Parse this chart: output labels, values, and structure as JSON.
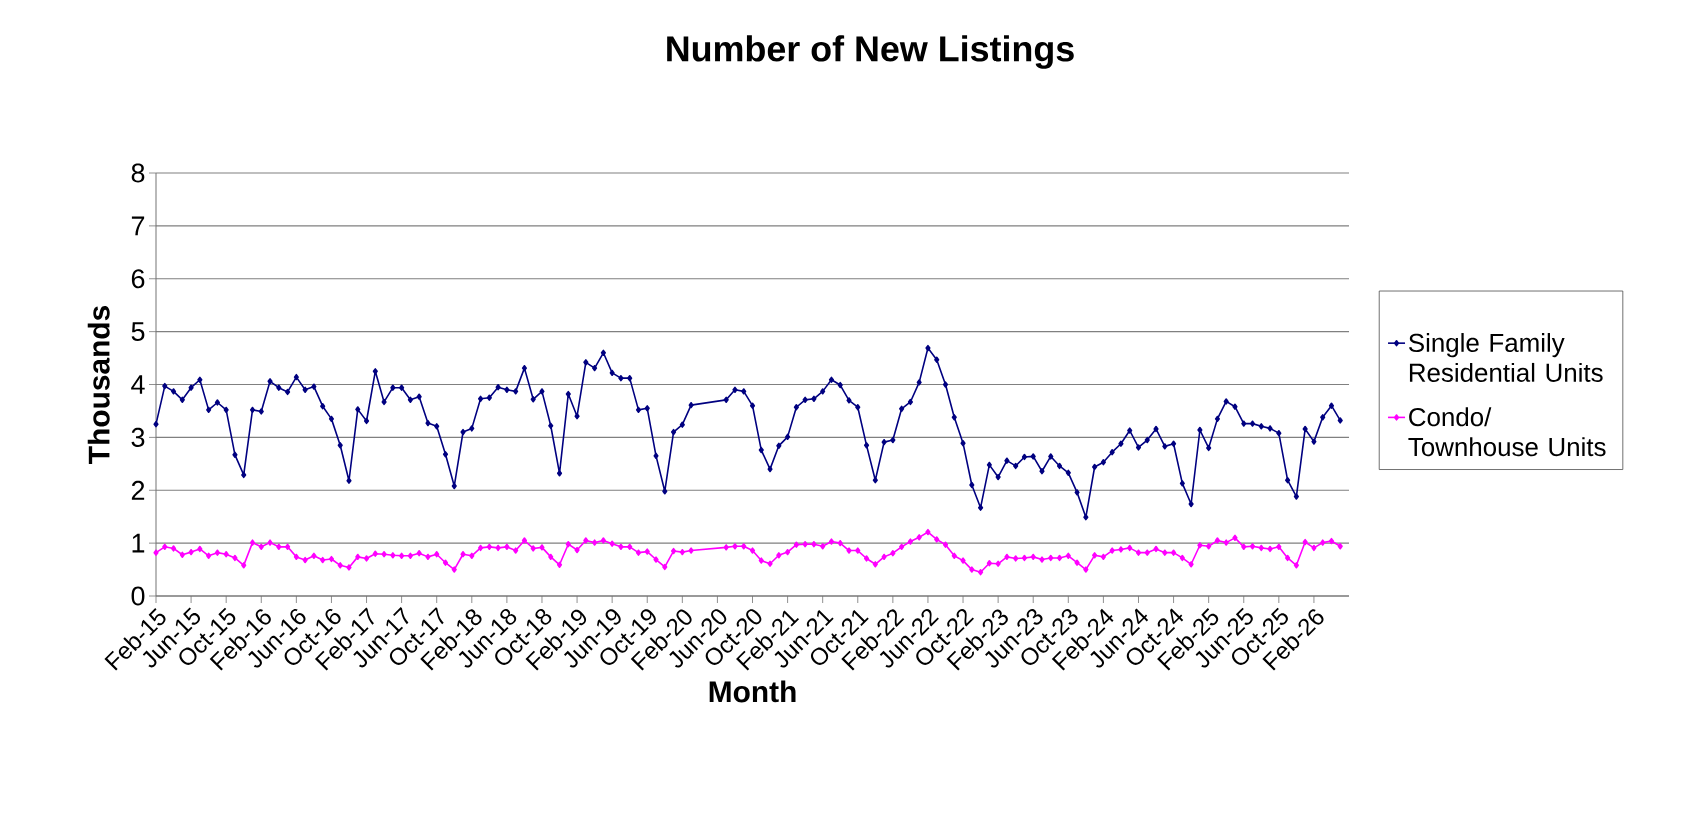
{
  "chart_data": {
    "type": "line",
    "title": "Number of New Listings",
    "xlabel": "Month",
    "ylabel": "Thousands",
    "x": [
      "2015-02",
      "2015-03",
      "2015-04",
      "2015-05",
      "2015-06",
      "2015-07",
      "2015-08",
      "2015-09",
      "2015-10",
      "2015-11",
      "2015-12",
      "2016-01",
      "2016-02",
      "2016-03",
      "2016-04",
      "2016-05",
      "2016-06",
      "2016-07",
      "2016-08",
      "2016-09",
      "2016-10",
      "2016-11",
      "2016-12",
      "2017-01",
      "2017-02",
      "2017-03",
      "2017-04",
      "2017-05",
      "2017-06",
      "2017-07",
      "2017-08",
      "2017-09",
      "2017-10",
      "2017-11",
      "2017-12",
      "2018-01",
      "2018-02",
      "2018-03",
      "2018-04",
      "2018-05",
      "2018-06",
      "2018-07",
      "2018-08",
      "2018-09",
      "2018-10",
      "2018-11",
      "2018-12",
      "2019-01",
      "2019-02",
      "2019-03",
      "2019-04",
      "2019-05",
      "2019-06",
      "2019-07",
      "2019-08",
      "2019-09",
      "2019-10",
      "2019-11",
      "2019-12",
      "2020-01",
      "2020-02",
      "2020-03",
      "2020-07",
      "2020-08",
      "2020-09",
      "2020-10",
      "2020-11",
      "2020-12",
      "2021-01",
      "2021-02",
      "2021-03",
      "2021-04",
      "2021-05",
      "2021-06",
      "2021-07",
      "2021-08",
      "2021-09",
      "2021-10",
      "2021-11",
      "2021-12",
      "2022-01",
      "2022-02",
      "2022-03",
      "2022-04",
      "2022-05",
      "2022-06",
      "2022-07",
      "2022-08",
      "2022-09",
      "2022-10",
      "2022-11",
      "2022-12",
      "2023-01",
      "2023-02",
      "2023-03",
      "2023-04",
      "2023-05",
      "2023-06",
      "2023-07",
      "2023-08",
      "2023-09",
      "2023-10",
      "2023-11",
      "2023-12",
      "2024-01",
      "2024-02",
      "2024-03",
      "2024-04",
      "2024-05",
      "2024-06",
      "2024-07",
      "2024-08",
      "2024-09",
      "2024-10",
      "2024-11",
      "2024-12",
      "2025-01",
      "2025-02",
      "2025-03",
      "2025-04",
      "2025-05",
      "2025-06",
      "2025-07",
      "2025-08",
      "2025-09",
      "2025-10",
      "2025-11",
      "2025-12",
      "2026-01",
      "2026-02",
      "2026-03",
      "2026-04",
      "2026-05"
    ],
    "series": [
      {
        "name": "Single Family Residential Units",
        "color": "#000080",
        "values": [
          3.25,
          3.97,
          3.87,
          3.71,
          3.94,
          4.09,
          3.52,
          3.66,
          3.52,
          2.67,
          2.29,
          3.52,
          3.49,
          4.06,
          3.94,
          3.86,
          4.14,
          3.9,
          3.96,
          3.59,
          3.35,
          2.85,
          2.18,
          3.53,
          3.31,
          4.25,
          3.67,
          3.94,
          3.94,
          3.71,
          3.77,
          3.27,
          3.21,
          2.68,
          2.08,
          3.1,
          3.17,
          3.73,
          3.75,
          3.95,
          3.9,
          3.87,
          4.31,
          3.72,
          3.87,
          3.22,
          2.32,
          3.82,
          3.4,
          4.42,
          4.31,
          4.6,
          4.22,
          4.12,
          4.12,
          3.52,
          3.55,
          2.65,
          1.98,
          3.1,
          3.24,
          3.61,
          3.71,
          3.9,
          3.87,
          3.6,
          2.76,
          2.4,
          2.84,
          3.01,
          3.57,
          3.71,
          3.73,
          3.87,
          4.09,
          3.99,
          3.7,
          3.57,
          2.85,
          2.19,
          2.91,
          2.95,
          3.54,
          3.67,
          4.04,
          4.69,
          4.47,
          4.0,
          3.38,
          2.89,
          2.1,
          1.67,
          2.48,
          2.25,
          2.56,
          2.46,
          2.63,
          2.64,
          2.36,
          2.64,
          2.46,
          2.33,
          1.96,
          1.49,
          2.44,
          2.53,
          2.72,
          2.88,
          3.13,
          2.81,
          2.95,
          3.16,
          2.83,
          2.88,
          2.13,
          1.74,
          3.14,
          2.8,
          3.35,
          3.68,
          3.58,
          3.26,
          3.26,
          3.21,
          3.17,
          3.08,
          2.19,
          1.88,
          3.16,
          2.92,
          3.38,
          3.6,
          3.32
        ]
      },
      {
        "name": "Condo/ Townhouse Units",
        "color": "#ff00ff",
        "values": [
          0.82,
          0.93,
          0.9,
          0.78,
          0.83,
          0.89,
          0.76,
          0.82,
          0.79,
          0.72,
          0.58,
          1.01,
          0.93,
          1.01,
          0.93,
          0.93,
          0.74,
          0.68,
          0.76,
          0.68,
          0.7,
          0.58,
          0.54,
          0.74,
          0.71,
          0.8,
          0.79,
          0.77,
          0.76,
          0.76,
          0.81,
          0.74,
          0.79,
          0.63,
          0.5,
          0.79,
          0.76,
          0.91,
          0.93,
          0.91,
          0.93,
          0.86,
          1.05,
          0.9,
          0.92,
          0.74,
          0.59,
          0.98,
          0.87,
          1.05,
          1.01,
          1.05,
          0.99,
          0.93,
          0.93,
          0.82,
          0.84,
          0.69,
          0.55,
          0.85,
          0.83,
          0.86,
          0.92,
          0.94,
          0.94,
          0.86,
          0.67,
          0.61,
          0.77,
          0.83,
          0.97,
          0.98,
          0.98,
          0.94,
          1.03,
          1.0,
          0.86,
          0.86,
          0.71,
          0.6,
          0.74,
          0.81,
          0.93,
          1.03,
          1.11,
          1.21,
          1.07,
          0.97,
          0.76,
          0.67,
          0.5,
          0.45,
          0.62,
          0.61,
          0.74,
          0.71,
          0.72,
          0.74,
          0.69,
          0.72,
          0.72,
          0.76,
          0.63,
          0.5,
          0.77,
          0.74,
          0.86,
          0.88,
          0.91,
          0.82,
          0.82,
          0.89,
          0.82,
          0.82,
          0.72,
          0.6,
          0.96,
          0.94,
          1.05,
          1.01,
          1.1,
          0.93,
          0.94,
          0.91,
          0.89,
          0.93,
          0.72,
          0.58,
          1.02,
          0.91,
          1.01,
          1.04,
          0.94
        ]
      }
    ],
    "xlim": [
      "2015-02",
      "2026-06"
    ],
    "xticks": [
      {
        "value": "2015-02",
        "label": "Feb-15"
      },
      {
        "value": "2015-06",
        "label": "Jun-15"
      },
      {
        "value": "2015-10",
        "label": "Oct-15"
      },
      {
        "value": "2016-02",
        "label": "Feb-16"
      },
      {
        "value": "2016-06",
        "label": "Jun-16"
      },
      {
        "value": "2016-10",
        "label": "Oct-16"
      },
      {
        "value": "2017-02",
        "label": "Feb-17"
      },
      {
        "value": "2017-06",
        "label": "Jun-17"
      },
      {
        "value": "2017-10",
        "label": "Oct-17"
      },
      {
        "value": "2018-02",
        "label": "Feb-18"
      },
      {
        "value": "2018-06",
        "label": "Jun-18"
      },
      {
        "value": "2018-10",
        "label": "Oct-18"
      },
      {
        "value": "2019-02",
        "label": "Feb-19"
      },
      {
        "value": "2019-06",
        "label": "Jun-19"
      },
      {
        "value": "2019-10",
        "label": "Oct-19"
      },
      {
        "value": "2020-02",
        "label": "Feb-20"
      },
      {
        "value": "2020-06",
        "label": "Jun-20"
      },
      {
        "value": "2020-10",
        "label": "Oct-20"
      },
      {
        "value": "2021-02",
        "label": "Feb-21"
      },
      {
        "value": "2021-06",
        "label": "Jun-21"
      },
      {
        "value": "2021-10",
        "label": "Oct-21"
      },
      {
        "value": "2022-02",
        "label": "Feb-22"
      },
      {
        "value": "2022-06",
        "label": "Jun-22"
      },
      {
        "value": "2022-10",
        "label": "Oct-22"
      },
      {
        "value": "2023-02",
        "label": "Feb-23"
      },
      {
        "value": "2023-06",
        "label": "Jun-23"
      },
      {
        "value": "2023-10",
        "label": "Oct-23"
      },
      {
        "value": "2024-02",
        "label": "Feb-24"
      },
      {
        "value": "2024-06",
        "label": "Jun-24"
      },
      {
        "value": "2024-10",
        "label": "Oct-24"
      },
      {
        "value": "2025-02",
        "label": "Feb-25"
      },
      {
        "value": "2025-06",
        "label": "Jun-25"
      },
      {
        "value": "2025-10",
        "label": "Oct-25"
      },
      {
        "value": "2026-02",
        "label": "Feb-26"
      }
    ],
    "ylim": [
      0,
      8
    ],
    "yticks": [
      0,
      1,
      2,
      3,
      4,
      5,
      6,
      7,
      8
    ],
    "grid": "y",
    "legend": "right",
    "marker": "diamond",
    "line_style": "solid"
  }
}
